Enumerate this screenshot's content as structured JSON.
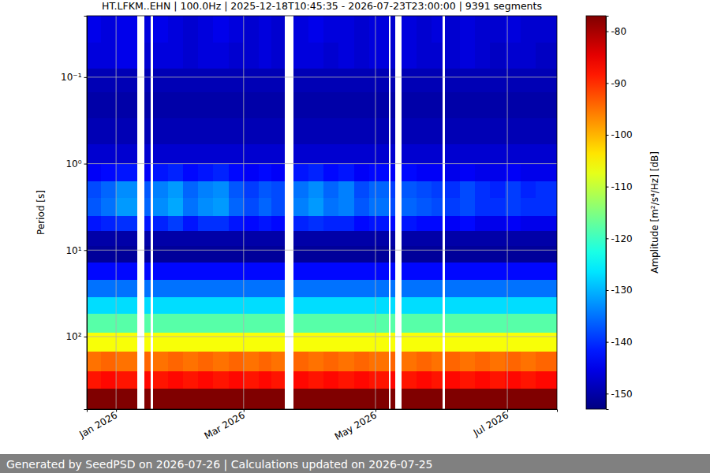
{
  "chart_data": {
    "type": "heatmap",
    "title": "HT.LFKM..EHN | 100.0Hz | 2025-12-18T10:45:35 - 2026-07-23T23:00:00 | 9391 segments",
    "ylabel": "Period [s]",
    "footer": "Generated by SeedPSD on 2026-07-26 | Calculations updated on 2026-07-25",
    "log": "y",
    "grid": true,
    "xlim": [
      "2025-12-18T10:45:35",
      "2026-07-23T23:00:00"
    ],
    "xticks": [
      {
        "value": "2026-01-01T00:00:00",
        "label": "Jan 2026"
      },
      {
        "value": "2026-03-01T00:00:00",
        "label": "Mar 2026"
      },
      {
        "value": "2026-05-01T00:00:00",
        "label": "May 2026"
      },
      {
        "value": "2026-07-01T00:00:00",
        "label": "Jul 2026"
      }
    ],
    "ylim": [
      0.0195,
      690
    ],
    "yticks": [
      {
        "value": 0.1,
        "label": "10⁻¹"
      },
      {
        "value": 1,
        "label": "10⁰"
      },
      {
        "value": 10,
        "label": "10¹"
      },
      {
        "value": 100,
        "label": "10²"
      }
    ],
    "x": [
      "2025-12-18T10:45:35",
      "2025-12-25T00:00:00",
      "2026-01-01T00:00:00",
      "2026-01-10T12:00:00",
      "2026-01-14T00:00:00",
      "2026-01-17T00:00:00",
      "2026-01-18T00:00:00",
      "2026-01-25T00:00:00",
      "2026-02-01T00:00:00",
      "2026-02-08T00:00:00",
      "2026-02-15T00:00:00",
      "2026-02-22T00:00:00",
      "2026-03-01T00:00:00",
      "2026-03-08T00:00:00",
      "2026-03-14T00:00:00",
      "2026-03-20T00:00:00",
      "2026-03-24T00:00:00",
      "2026-03-31T00:00:00",
      "2026-04-07T00:00:00",
      "2026-04-14T00:00:00",
      "2026-04-21T00:00:00",
      "2026-04-28T00:00:00",
      "2026-05-07T00:00:00",
      "2026-05-08T00:00:00",
      "2026-05-10T00:00:00",
      "2026-05-13T00:00:00",
      "2026-05-20T00:00:00",
      "2026-05-27T00:00:00",
      "2026-06-01T00:00:00",
      "2026-06-02T00:00:00",
      "2026-06-09T00:00:00",
      "2026-06-16T00:00:00",
      "2026-06-23T00:00:00",
      "2026-06-30T00:00:00",
      "2026-07-07T00:00:00",
      "2026-07-14T00:00:00",
      "2026-07-23T23:00:00"
    ],
    "y": [
      0.0195,
      0.04,
      0.08,
      0.15,
      0.3,
      0.6,
      1,
      1.6,
      2.5,
      4,
      6,
      9,
      14,
      22,
      35,
      55,
      90,
      150,
      250,
      400,
      690
    ],
    "values": [
      [
        -145,
        -146,
        -149,
        -150,
        -149,
        -147,
        -144,
        -138,
        -137,
        -142,
        -150,
        -151,
        -143,
        -135,
        -127,
        -118,
        -106,
        -95,
        -88,
        -77
      ],
      [
        -146,
        -146,
        -149,
        -150,
        -149,
        -147,
        -143,
        -136,
        -135,
        -141,
        -150,
        -151,
        -143,
        -135,
        -127,
        -118,
        -106,
        -94,
        -87,
        -77
      ],
      [
        -145,
        -145,
        -149,
        -150,
        -149,
        -147,
        -142,
        -133,
        -132,
        -140,
        -150,
        -151,
        -143,
        -135,
        -127,
        -118,
        -106,
        -95,
        -88,
        -77
      ],
      null,
      [
        -146,
        -147,
        -149,
        -150,
        -149,
        -147,
        -144,
        -137,
        -136,
        -142,
        -150,
        -151,
        -143,
        -135,
        -127,
        -118,
        -106,
        -94,
        -87,
        -77
      ],
      null,
      [
        -145,
        -146,
        -149,
        -150,
        -149,
        -147,
        -142,
        -134,
        -133,
        -141,
        -150,
        -151,
        -143,
        -135,
        -127,
        -118,
        -106,
        -95,
        -88,
        -77
      ],
      [
        -146,
        -146,
        -149,
        -150,
        -149,
        -147,
        -141,
        -132,
        -131,
        -139,
        -150,
        -151,
        -143,
        -135,
        -127,
        -118,
        -106,
        -94,
        -87,
        -77
      ],
      [
        -147,
        -147,
        -149,
        -150,
        -149,
        -147,
        -143,
        -136,
        -135,
        -142,
        -150,
        -151,
        -143,
        -135,
        -127,
        -118,
        -106,
        -95,
        -88,
        -77
      ],
      [
        -146,
        -146,
        -149,
        -150,
        -149,
        -147,
        -142,
        -134,
        -133,
        -140,
        -150,
        -151,
        -143,
        -135,
        -127,
        -118,
        -106,
        -94,
        -87,
        -77
      ],
      [
        -145,
        -146,
        -149,
        -150,
        -149,
        -147,
        -141,
        -133,
        -132,
        -140,
        -150,
        -151,
        -143,
        -135,
        -127,
        -118,
        -106,
        -95,
        -88,
        -77
      ],
      [
        -146,
        -147,
        -149,
        -150,
        -149,
        -147,
        -143,
        -137,
        -136,
        -142,
        -150,
        -151,
        -143,
        -135,
        -127,
        -118,
        -106,
        -94,
        -87,
        -77
      ],
      [
        -147,
        -147,
        -149,
        -150,
        -149,
        -147,
        -144,
        -139,
        -138,
        -143,
        -150,
        -151,
        -143,
        -135,
        -127,
        -118,
        -106,
        -95,
        -88,
        -77
      ],
      [
        -146,
        -146,
        -149,
        -150,
        -149,
        -147,
        -143,
        -137,
        -136,
        -142,
        -150,
        -151,
        -143,
        -135,
        -127,
        -118,
        -106,
        -94,
        -87,
        -77
      ],
      [
        -147,
        -147,
        -149,
        -150,
        -149,
        -147,
        -144,
        -138,
        -138,
        -143,
        -150,
        -151,
        -143,
        -135,
        -127,
        -118,
        -106,
        -95,
        -88,
        -77
      ],
      null,
      [
        -146,
        -146,
        -149,
        -150,
        -149,
        -147,
        -142,
        -135,
        -134,
        -141,
        -150,
        -151,
        -143,
        -135,
        -127,
        -118,
        -106,
        -94,
        -87,
        -77
      ],
      [
        -145,
        -146,
        -149,
        -150,
        -149,
        -147,
        -141,
        -133,
        -132,
        -140,
        -150,
        -151,
        -143,
        -135,
        -127,
        -118,
        -106,
        -95,
        -88,
        -77
      ],
      [
        -146,
        -147,
        -149,
        -150,
        -149,
        -147,
        -143,
        -136,
        -135,
        -141,
        -150,
        -151,
        -143,
        -135,
        -127,
        -118,
        -106,
        -94,
        -87,
        -77
      ],
      [
        -146,
        -146,
        -149,
        -150,
        -149,
        -147,
        -142,
        -134,
        -134,
        -141,
        -150,
        -151,
        -143,
        -135,
        -127,
        -118,
        -106,
        -95,
        -88,
        -77
      ],
      [
        -147,
        -147,
        -149,
        -150,
        -149,
        -147,
        -144,
        -138,
        -137,
        -143,
        -150,
        -151,
        -143,
        -135,
        -127,
        -118,
        -106,
        -94,
        -87,
        -77
      ],
      [
        -146,
        -146,
        -149,
        -150,
        -149,
        -147,
        -143,
        -136,
        -135,
        -142,
        -150,
        -151,
        -143,
        -135,
        -127,
        -118,
        -106,
        -95,
        -88,
        -77
      ],
      null,
      [
        -147,
        -147,
        -149,
        -150,
        -149,
        -147,
        -144,
        -139,
        -138,
        -143,
        -150,
        -151,
        -143,
        -135,
        -127,
        -118,
        -106,
        -94,
        -87,
        -77
      ],
      null,
      [
        -146,
        -146,
        -149,
        -150,
        -149,
        -147,
        -143,
        -137,
        -136,
        -142,
        -150,
        -151,
        -143,
        -135,
        -127,
        -118,
        -106,
        -95,
        -88,
        -77
      ],
      [
        -147,
        -147,
        -149,
        -150,
        -149,
        -147,
        -144,
        -138,
        -137,
        -143,
        -150,
        -151,
        -143,
        -135,
        -127,
        -118,
        -106,
        -94,
        -87,
        -77
      ],
      [
        -146,
        -147,
        -149,
        -150,
        -149,
        -147,
        -144,
        -139,
        -138,
        -143,
        -150,
        -151,
        -143,
        -135,
        -127,
        -118,
        -106,
        -95,
        -88,
        -77
      ],
      null,
      [
        -147,
        -147,
        -149,
        -150,
        -149,
        -147,
        -145,
        -140,
        -139,
        -144,
        -150,
        -151,
        -143,
        -135,
        -127,
        -118,
        -106,
        -94,
        -87,
        -77
      ],
      [
        -146,
        -146,
        -149,
        -150,
        -149,
        -147,
        -144,
        -138,
        -138,
        -143,
        -150,
        -151,
        -143,
        -135,
        -127,
        -118,
        -106,
        -95,
        -88,
        -77
      ],
      [
        -147,
        -147,
        -149,
        -150,
        -149,
        -147,
        -145,
        -140,
        -140,
        -145,
        -150,
        -151,
        -143,
        -135,
        -127,
        -118,
        -106,
        -94,
        -87,
        -77
      ],
      [
        -147,
        -148,
        -149,
        -150,
        -149,
        -147,
        -145,
        -141,
        -140,
        -145,
        -150,
        -151,
        -143,
        -135,
        -127,
        -118,
        -106,
        -95,
        -88,
        -77
      ],
      [
        -146,
        -147,
        -149,
        -150,
        -149,
        -147,
        -144,
        -139,
        -139,
        -144,
        -150,
        -151,
        -143,
        -135,
        -127,
        -118,
        -106,
        -94,
        -87,
        -77
      ],
      [
        -147,
        -147,
        -149,
        -150,
        -149,
        -147,
        -145,
        -141,
        -140,
        -145,
        -150,
        -151,
        -143,
        -135,
        -127,
        -118,
        -106,
        -95,
        -88,
        -77
      ],
      [
        -147,
        -148,
        -149,
        -150,
        -149,
        -147,
        -145,
        -140,
        -140,
        -145,
        -150,
        -151,
        -143,
        -135,
        -127,
        -118,
        -106,
        -94,
        -87,
        -77
      ]
    ],
    "colorbar": {
      "label": "Amplitude [m²/s⁴/Hz] [dB]",
      "range": [
        -153,
        -77
      ],
      "ticks": [
        -150,
        -140,
        -130,
        -120,
        -110,
        -100,
        -90,
        -80
      ]
    }
  }
}
